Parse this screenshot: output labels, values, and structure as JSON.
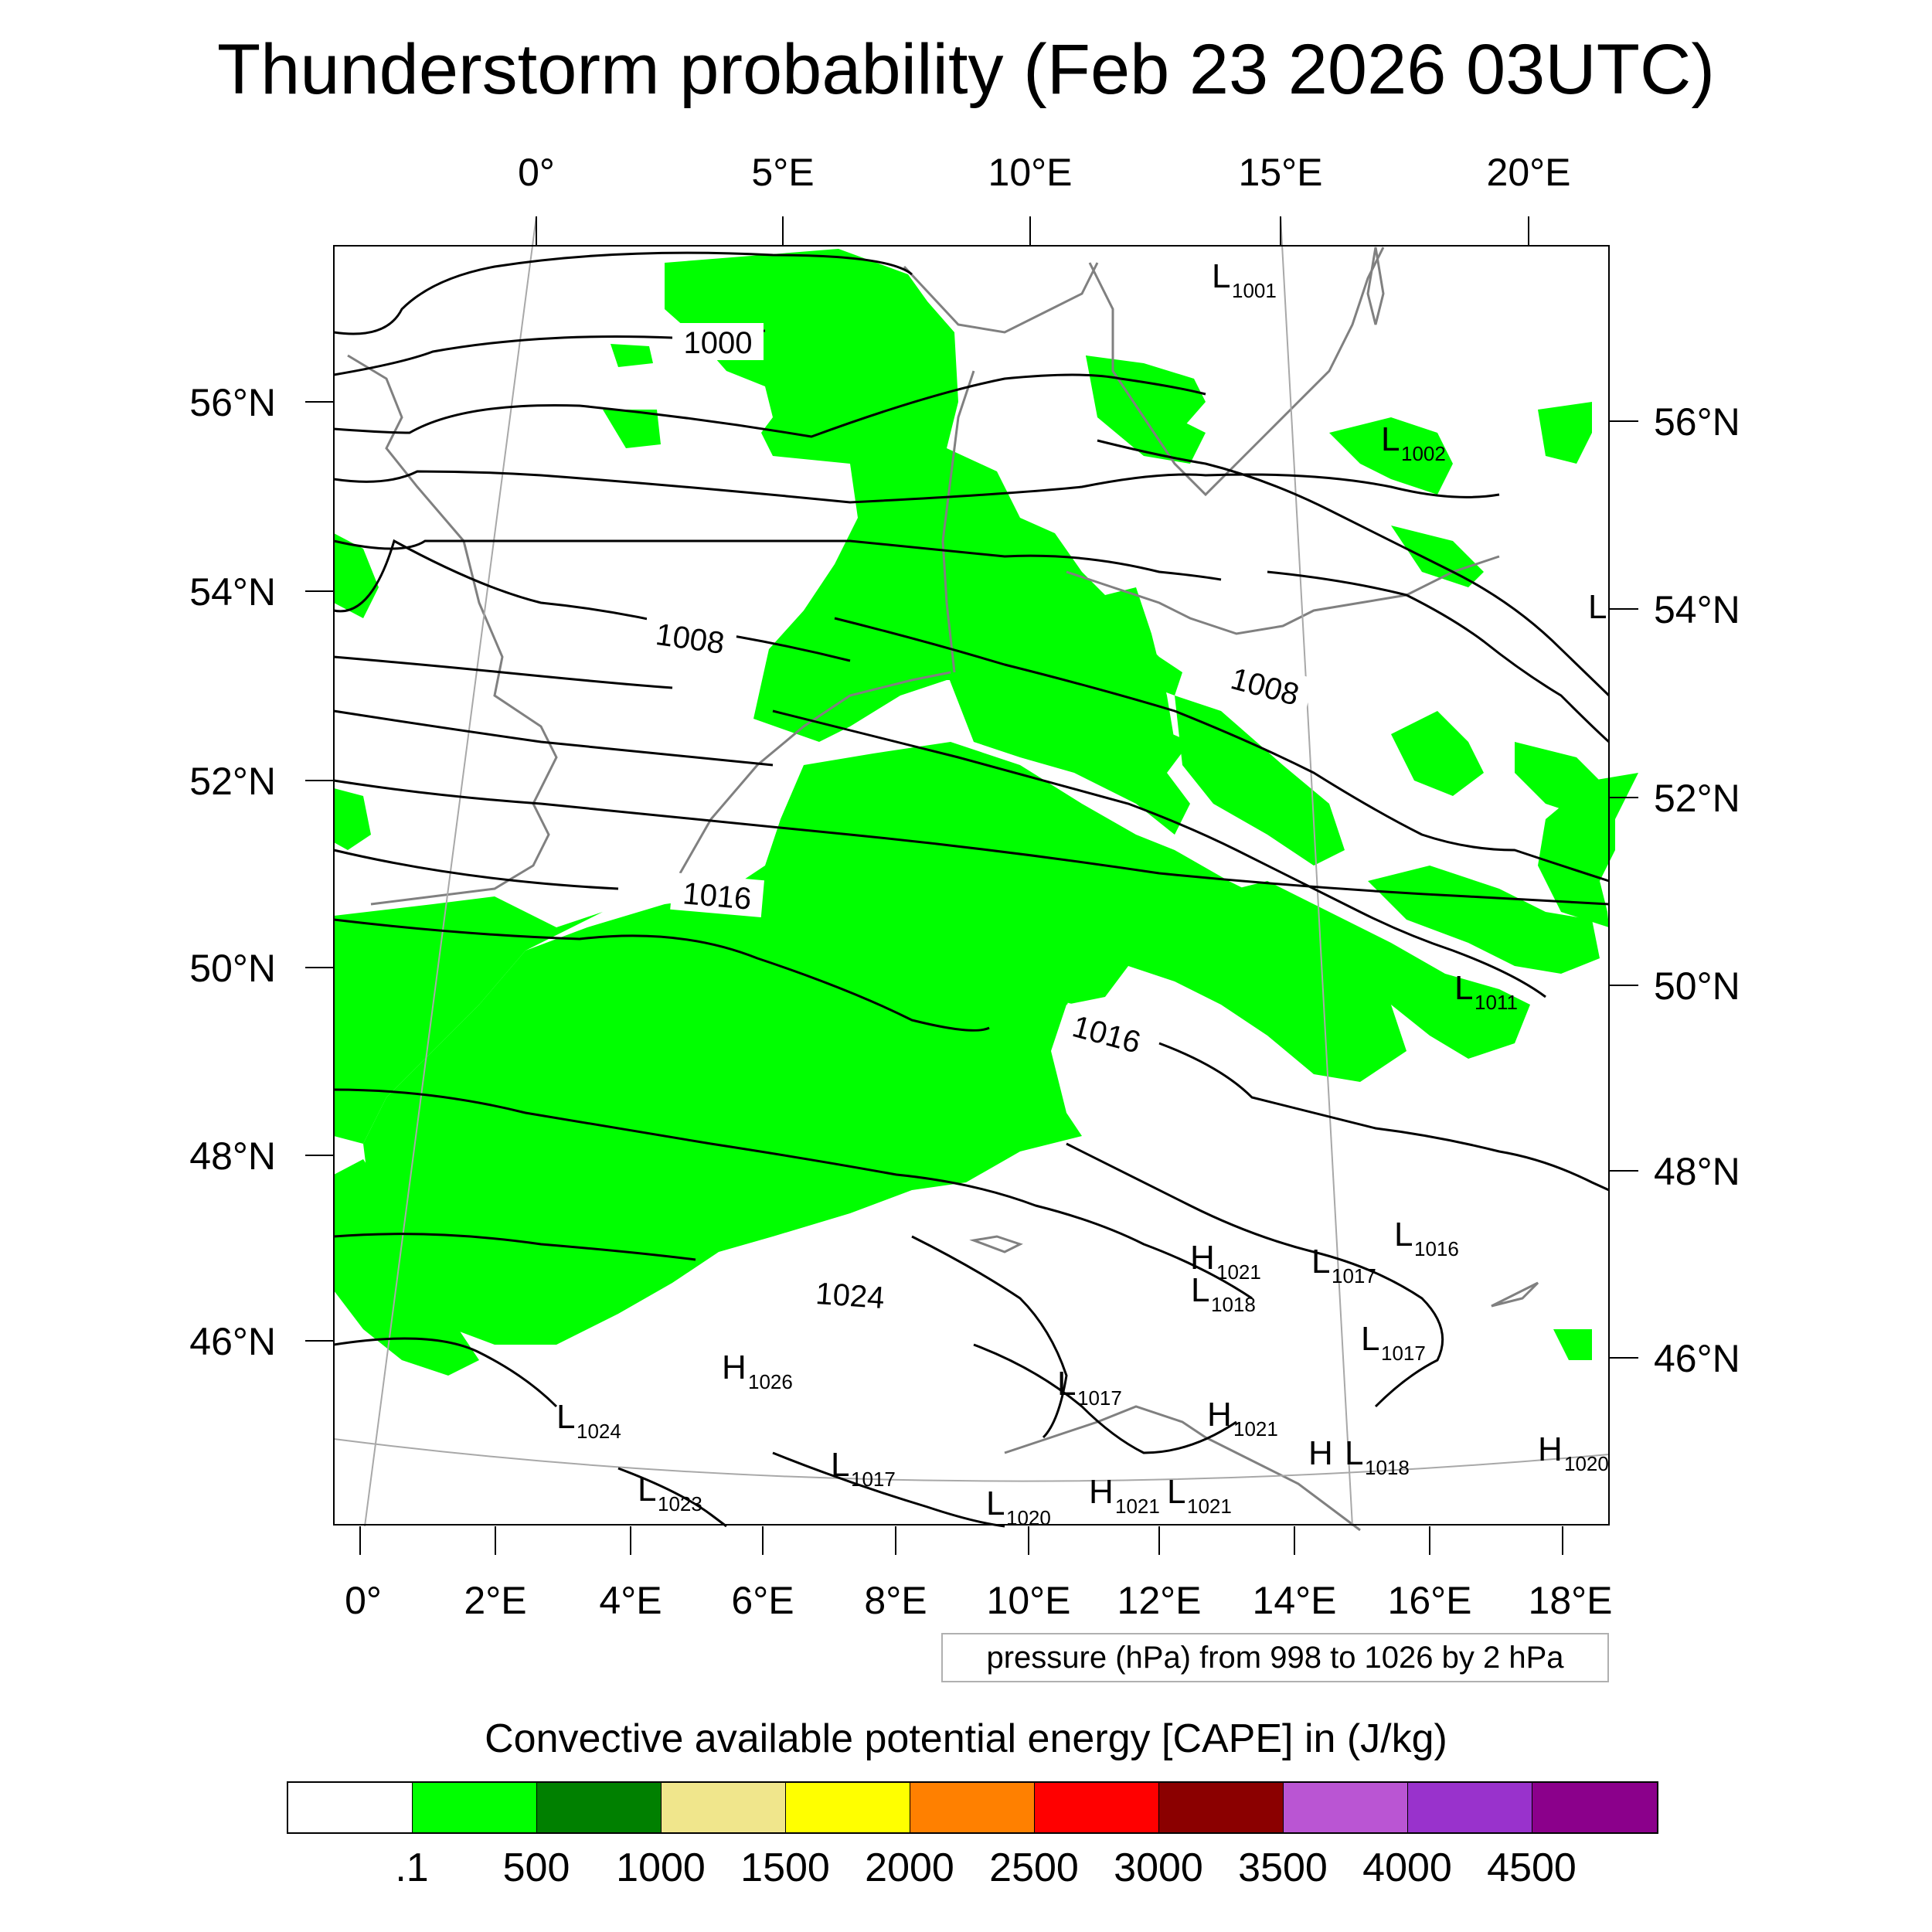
{
  "title": "Thunderstorm probability (Feb 23 2026 03UTC)",
  "map": {
    "top_lon_labels": [
      "0°",
      "5°E",
      "10°E",
      "15°E",
      "20°E"
    ],
    "bottom_lon_labels": [
      "0°",
      "2°E",
      "4°E",
      "6°E",
      "8°E",
      "10°E",
      "12°E",
      "14°E",
      "16°E",
      "18°E"
    ],
    "left_lat_labels": [
      "56°N",
      "54°N",
      "52°N",
      "50°N",
      "48°N",
      "46°N"
    ],
    "right_lat_labels": [
      "56°N",
      "54°N",
      "52°N",
      "50°N",
      "48°N",
      "46°N"
    ],
    "isobar_labels": [
      "1000",
      "1008",
      "1008",
      "1016",
      "1016",
      "1024"
    ],
    "pressure_centers": [
      {
        "type": "L",
        "value": "1001"
      },
      {
        "type": "L",
        "value": "1002"
      },
      {
        "type": "L",
        "value": ""
      },
      {
        "type": "L",
        "value": "1011"
      },
      {
        "type": "L",
        "value": "1016"
      },
      {
        "type": "H",
        "value": "1021"
      },
      {
        "type": "L",
        "value": "1017"
      },
      {
        "type": "L",
        "value": "1018"
      },
      {
        "type": "L",
        "value": "1017"
      },
      {
        "type": "H",
        "value": "1026"
      },
      {
        "type": "L",
        "value": "1017"
      },
      {
        "type": "L",
        "value": "1024"
      },
      {
        "type": "H",
        "value": "1021"
      },
      {
        "type": "H",
        "value": ""
      },
      {
        "type": "L",
        "value": "1018"
      },
      {
        "type": "H",
        "value": "1020"
      },
      {
        "type": "L",
        "value": "1017"
      },
      {
        "type": "L",
        "value": "1023"
      },
      {
        "type": "L",
        "value": "1020"
      },
      {
        "type": "H",
        "value": "1021"
      },
      {
        "type": "L",
        "value": "1021"
      }
    ],
    "colors": {
      "cape_low": "#00ff00",
      "coast": "#808080",
      "isobar": "#000000",
      "graticule": "#a0a0a0"
    }
  },
  "info_box": "pressure (hPa) from 998 to 1026 by 2 hPa",
  "colorbar": {
    "title": "Convective available potential energy [CAPE] in (J/kg)",
    "colors": [
      "#ffffff",
      "#00ff00",
      "#008000",
      "#f0e68c",
      "#ffff00",
      "#ff8000",
      "#ff0000",
      "#8b0000",
      "#ba55d3",
      "#9932cc",
      "#8b008b"
    ],
    "tick_labels": [
      ".1",
      "500",
      "1000",
      "1500",
      "2000",
      "2500",
      "3000",
      "3500",
      "4000",
      "4500"
    ]
  }
}
